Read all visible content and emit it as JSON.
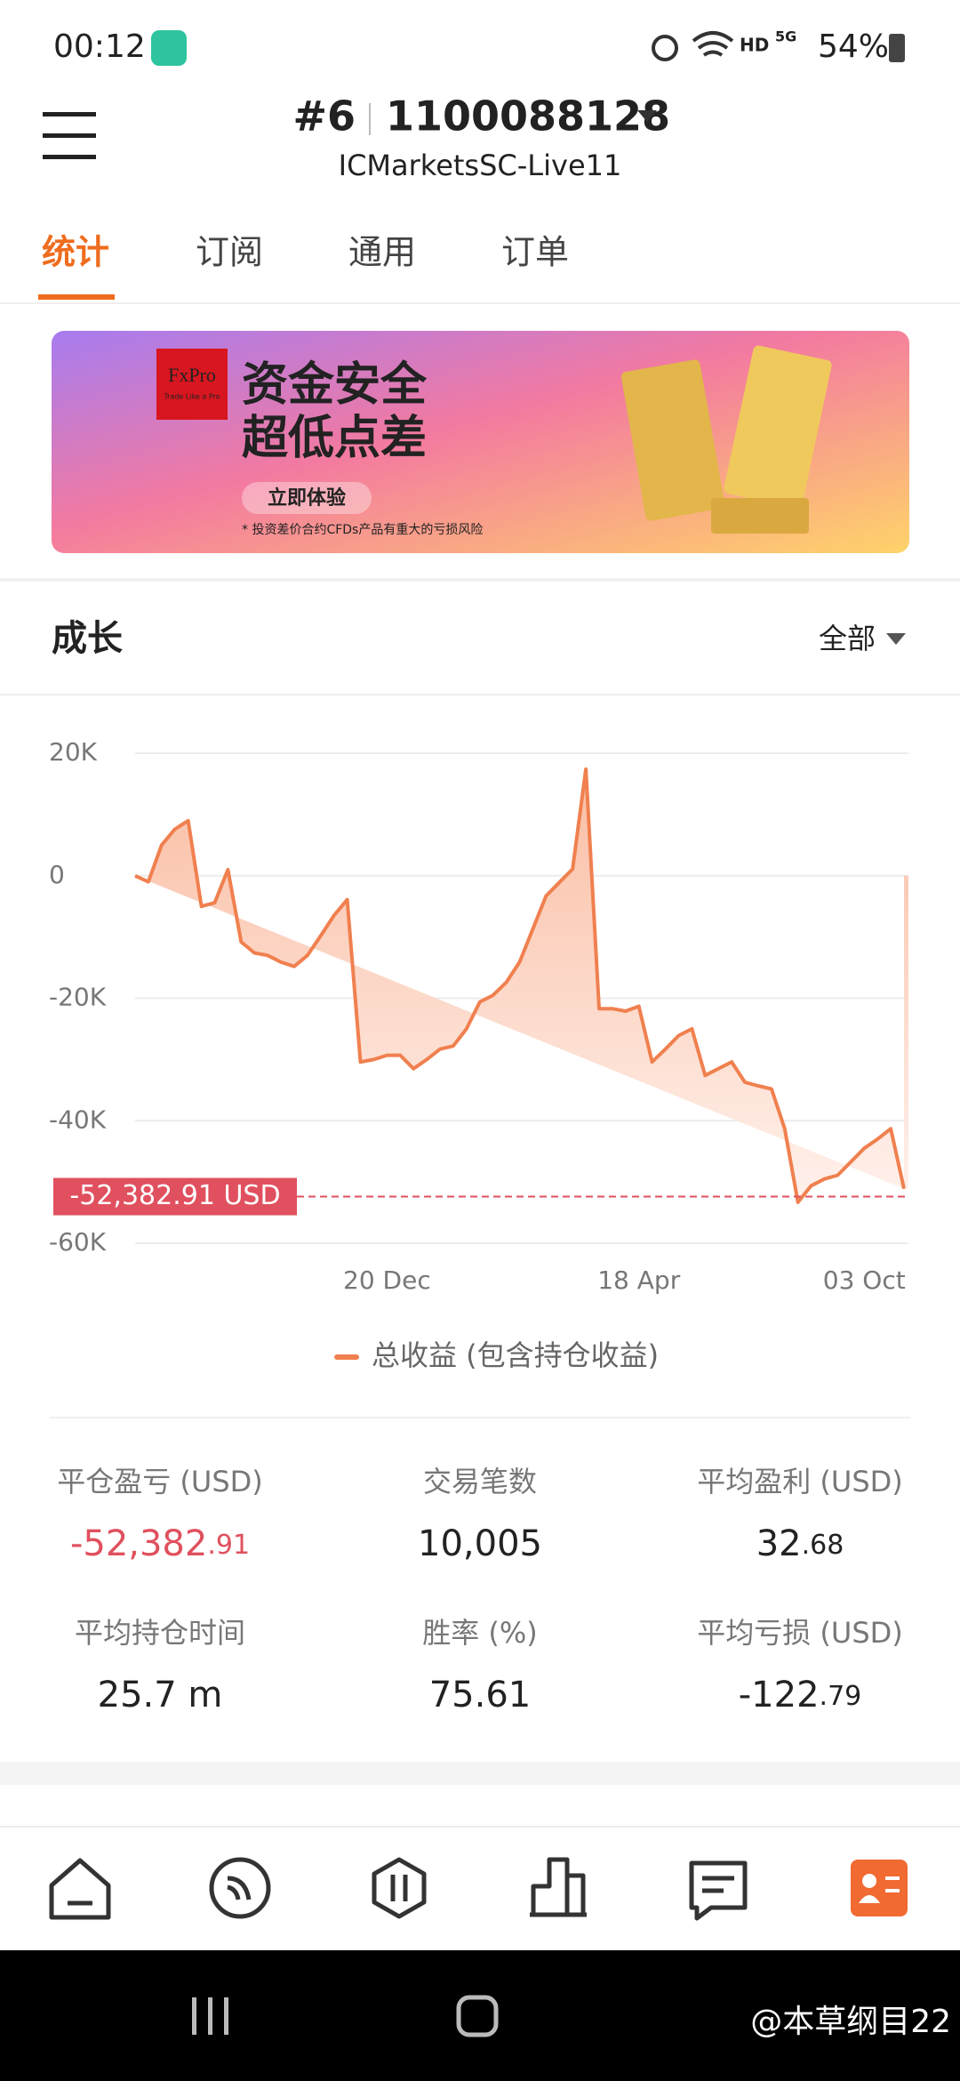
{
  "status": {
    "time": "00:12",
    "hd": "HD",
    "net": "5G",
    "battery": "54%"
  },
  "header": {
    "account_index": "#6",
    "account": "1100088128",
    "server": "ICMarketsSC-Live11"
  },
  "tabs": [
    "统计",
    "订阅",
    "通用",
    "订单"
  ],
  "banner": {
    "brand": "FxPro",
    "brand_tagline": "Trade Like a Pro",
    "line1": "资金安全",
    "line2": "超低点差",
    "button": "立即体验",
    "disclaimer": "* 投资差价合约CFDs产品有重大的亏损风险"
  },
  "section": {
    "title": "成长",
    "filter": "全部"
  },
  "chart_data": {
    "type": "line",
    "categories": [
      null,
      null,
      null,
      null,
      null,
      null,
      null,
      null,
      null,
      null,
      null,
      null,
      null,
      null,
      null,
      null,
      null,
      null,
      null,
      "20 Dec",
      null,
      null,
      null,
      null,
      null,
      null,
      null,
      null,
      null,
      null,
      null,
      null,
      null,
      null,
      null,
      null,
      null,
      null,
      "18 Apr",
      null,
      null,
      null,
      null,
      null,
      null,
      null,
      null,
      null,
      null,
      null,
      null,
      null,
      null,
      null,
      null,
      "03 Oct",
      null,
      null,
      null
    ],
    "series": [
      {
        "name": "总收益 (包含持仓收益)",
        "color": "#f0804f",
        "values": [
          0,
          -1000,
          5000,
          7600,
          9000,
          -5000,
          -4400,
          1000,
          -10800,
          -12600,
          -13000,
          -14100,
          -14800,
          -13000,
          -9800,
          -6500,
          -3900,
          -30400,
          -30000,
          -29300,
          -29300,
          -31500,
          -30000,
          -28300,
          -27800,
          -25000,
          -20600,
          -19500,
          -17400,
          -14100,
          -8700,
          -3300,
          -1100,
          1100,
          17400,
          -21700,
          -21700,
          -22100,
          -21300,
          -30400,
          -28300,
          -26100,
          -25000,
          -32600,
          -31500,
          -30400,
          -33700,
          -34300,
          -34800,
          -41300,
          -53300,
          -50600,
          -49500,
          -48900,
          -46700,
          -44500,
          -43000,
          -41300,
          -51100
        ]
      }
    ],
    "ylim": [
      -60000,
      20000
    ],
    "yticks": [
      {
        "value": 20000,
        "label": "20K"
      },
      {
        "value": 0,
        "label": "0"
      },
      {
        "value": -20000,
        "label": "-20K"
      },
      {
        "value": -40000,
        "label": "-40K"
      },
      {
        "value": -60000,
        "label": "-60K"
      }
    ],
    "grid": true,
    "current_value": -52382.91,
    "current_label": "-52,382.91 USD"
  },
  "stats": [
    {
      "label": "平仓盈亏 (USD)",
      "whole": "-52,382",
      "fraction": ".91"
    },
    {
      "label": "交易笔数",
      "whole": "10,005",
      "fraction": ""
    },
    {
      "label": "平均盈利 (USD)",
      "whole": "32",
      "fraction": ".68"
    },
    {
      "label": "平均持仓时间",
      "whole": "25.7 m",
      "fraction": ""
    },
    {
      "label": "胜率 (%)",
      "whole": "75.61",
      "fraction": ""
    },
    {
      "label": "平均亏损 (USD)",
      "whole": "-122",
      "fraction": ".79"
    }
  ],
  "watermark": "@本草纲目22"
}
